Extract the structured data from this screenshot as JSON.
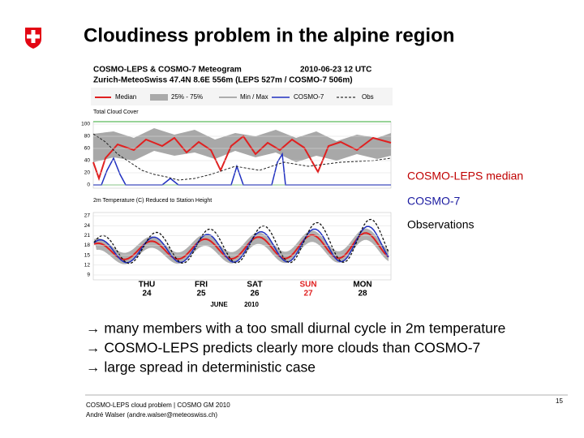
{
  "header": {
    "title": "Cloudiness problem in the alpine region"
  },
  "meteogram": {
    "title": "COSMO-LEPS & COSMO-7 Meteogram",
    "run": "2010-06-23 12 UTC",
    "location": "Zurich-MeteoSwiss  47.4N  8.6E  556m (LEPS 527m / COSMO-7 506m)",
    "legend": [
      "Median",
      "25% - 75%",
      "Min / Max",
      "COSMO-7",
      "Obs"
    ],
    "cloud_panel": {
      "title": "Total Cloud Cover",
      "yticks": [
        "100",
        "80",
        "60",
        "40",
        "20",
        "0"
      ]
    },
    "temp_panel": {
      "title": "2m Temperature (C) Reduced to Station Height",
      "yticks": [
        "27",
        "24",
        "21",
        "18",
        "15",
        "12",
        "9"
      ]
    },
    "days": [
      {
        "name": "THU",
        "date": "24"
      },
      {
        "name": "FRI",
        "date": "25"
      },
      {
        "name": "SAT",
        "date": "26"
      },
      {
        "name": "SUN",
        "date": "27"
      },
      {
        "name": "MON",
        "date": "28"
      }
    ],
    "month": "JUNE",
    "year": "2010"
  },
  "labels": [
    "COSMO-LEPS median",
    "COSMO-7",
    "Observations"
  ],
  "bullets": [
    "→ many members with a too small diurnal cycle in 2m temperature",
    "→ COSMO-LEPS predicts clearly more clouds than COSMO-7",
    "→ large spread in deterministic case"
  ],
  "footer": {
    "lines": [
      "COSMO-LEPS cloud problem | COSMO GM 2010",
      "André Walser (andre.walser@meteoswiss.ch)"
    ],
    "page": "15"
  }
}
